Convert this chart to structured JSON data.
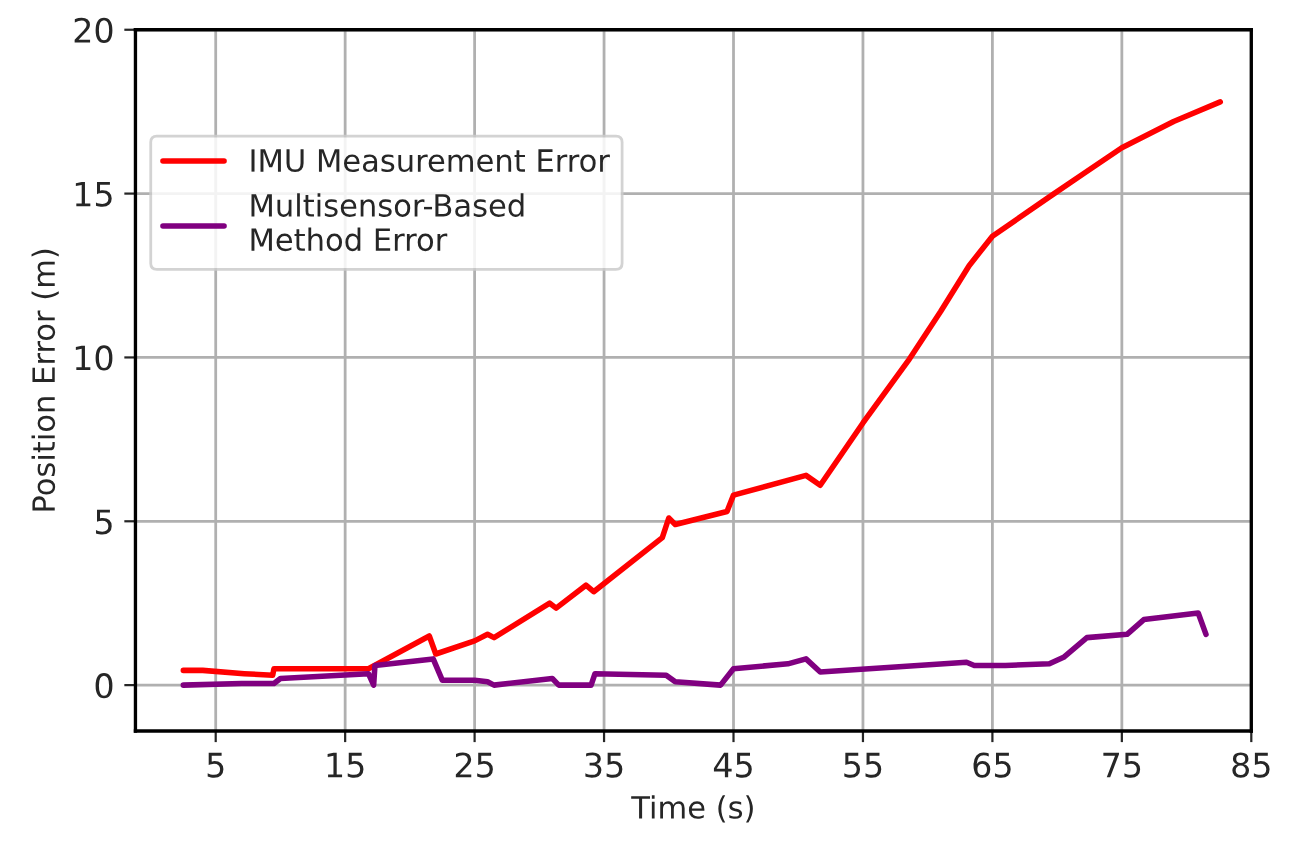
{
  "chart_data": {
    "type": "line",
    "xlabel": "Time (s)",
    "ylabel": "Position Error (m)",
    "xlim": [
      -1.2,
      85
    ],
    "ylim": [
      -1.4,
      20
    ],
    "xticks": [
      5,
      15,
      25,
      35,
      45,
      55,
      65,
      75,
      85
    ],
    "yticks": [
      0,
      5,
      10,
      15,
      20
    ],
    "grid": true,
    "legend": "top left",
    "line_style": "solid",
    "marker": "none",
    "series": [
      {
        "name": "IMU Measurement Error",
        "color": "#ff0000",
        "x": [
          2.5,
          4,
          7.2,
          9.4,
          9.5,
          16.8,
          21.5,
          22,
          25,
          26,
          26.5,
          30.8,
          31.3,
          33.6,
          34.2,
          39.5,
          40,
          40.5,
          44.5,
          45,
          50.6,
          51.7,
          55,
          58.5,
          61,
          63.2,
          65,
          69.4,
          72,
          75,
          79,
          82.6
        ],
        "values": [
          0.45,
          0.45,
          0.35,
          0.3,
          0.5,
          0.5,
          1.5,
          0.95,
          1.35,
          1.55,
          1.45,
          2.5,
          2.35,
          3.05,
          2.85,
          4.5,
          5.1,
          4.9,
          5.3,
          5.8,
          6.4,
          6.1,
          8.0,
          9.9,
          11.4,
          12.8,
          13.7,
          14.9,
          15.6,
          16.4,
          17.2,
          17.8
        ]
      },
      {
        "name": "Multisensor-Based\nMethod Error",
        "color": "#800080",
        "x": [
          2.5,
          7,
          9.5,
          10,
          16.8,
          17.2,
          17.3,
          21.8,
          22.5,
          25,
          26,
          26.5,
          31,
          31.5,
          34,
          34.3,
          39.8,
          40.5,
          44,
          45,
          49.2,
          50.6,
          51.7,
          63,
          63.6,
          66,
          69.4,
          70.5,
          72.3,
          75.4,
          76.7,
          80.9,
          81.5
        ],
        "values": [
          0.0,
          0.05,
          0.05,
          0.2,
          0.35,
          0.0,
          0.6,
          0.8,
          0.15,
          0.15,
          0.1,
          0.0,
          0.2,
          0.0,
          0.0,
          0.35,
          0.3,
          0.1,
          0.0,
          0.5,
          0.65,
          0.8,
          0.4,
          0.7,
          0.6,
          0.6,
          0.65,
          0.85,
          1.45,
          1.55,
          2.0,
          2.2,
          1.55
        ]
      }
    ]
  }
}
